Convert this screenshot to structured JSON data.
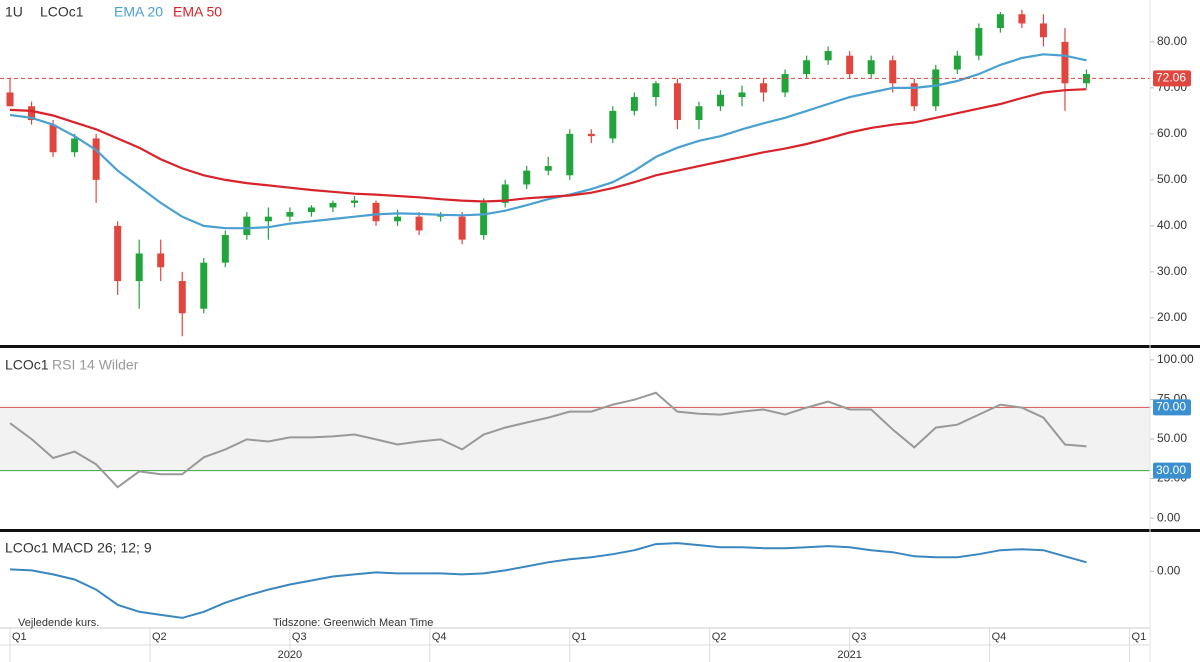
{
  "chart_data": [
    {
      "type": "candlestick",
      "interval": "1U",
      "x": [
        0,
        2,
        4,
        6,
        8,
        10,
        12,
        14,
        16,
        18,
        20,
        22,
        24,
        26,
        28,
        30,
        32,
        34,
        36,
        38,
        40,
        42,
        44,
        46,
        48,
        50,
        52,
        54,
        56,
        58,
        60,
        62,
        64,
        66,
        68,
        70,
        72,
        74,
        76,
        78,
        80,
        82,
        84,
        86,
        88,
        90,
        92,
        94,
        96,
        98,
        100
      ],
      "xlim": [
        -0.93,
        105.9
      ],
      "ylim": [
        14.1,
        89.1
      ],
      "yticks": [
        {
          "value": 20,
          "label": "20.00"
        },
        {
          "value": 30,
          "label": "30.00"
        },
        {
          "value": 40,
          "label": "40.00"
        },
        {
          "value": 50,
          "label": "50.00"
        },
        {
          "value": 60,
          "label": "60.00"
        },
        {
          "value": 70,
          "label": "70.00"
        },
        {
          "value": 80,
          "label": "80.00"
        }
      ],
      "up_color": "#22a33b",
      "down_color": "#e0463d",
      "series": [
        {
          "name": "LCOc1",
          "open": [
            69,
            66,
            62,
            56,
            59,
            40,
            28,
            34,
            28,
            22,
            32,
            38,
            41,
            42,
            43,
            44,
            45,
            45,
            41,
            42,
            42,
            42,
            38,
            45,
            49,
            52,
            51,
            60,
            59,
            65,
            68,
            71,
            63,
            66,
            68,
            71,
            69,
            73,
            76,
            77,
            73,
            76,
            71,
            66,
            74,
            77,
            83,
            86,
            84,
            80,
            71
          ],
          "high": [
            72,
            67,
            63,
            60,
            60,
            41,
            37,
            37,
            30,
            33,
            39,
            43,
            44,
            44,
            44.5,
            45.5,
            46.5,
            45.5,
            43.5,
            43,
            43,
            43,
            46,
            50,
            53,
            55,
            61,
            61,
            66,
            69,
            71.5,
            72,
            67,
            69.5,
            70.5,
            72,
            74,
            77,
            79,
            78,
            77,
            77,
            72,
            75,
            78,
            84,
            86.5,
            87,
            86,
            83,
            74
          ],
          "low": [
            66,
            62,
            55,
            55,
            45,
            25,
            22,
            28,
            16,
            21,
            31,
            37,
            37,
            41,
            42,
            43,
            44,
            40,
            40,
            38,
            41,
            36,
            37,
            44,
            48,
            51,
            50,
            58,
            58,
            64,
            66,
            61,
            61,
            65,
            66,
            67,
            68,
            72,
            75,
            72,
            72,
            69,
            65,
            65,
            73,
            76,
            82,
            83,
            79,
            65,
            70
          ],
          "close": [
            66,
            63,
            56,
            59,
            50,
            28,
            34,
            31,
            21,
            32,
            38,
            42,
            42,
            43,
            44,
            45,
            45.5,
            41,
            42,
            39,
            42.5,
            37,
            45,
            49,
            52,
            53,
            60,
            59.5,
            65,
            68,
            71,
            63,
            66,
            68.5,
            69,
            69,
            73,
            76,
            78,
            73,
            76,
            71,
            66,
            74,
            77,
            83,
            86,
            84,
            81,
            71,
            73
          ]
        },
        {
          "name": "EMA 20",
          "color": "#4aa0d0",
          "values": [
            64.1,
            63.5,
            62,
            59.5,
            56.5,
            52,
            48.5,
            45,
            42,
            40,
            39.5,
            39.5,
            39.7,
            40.5,
            41,
            41.5,
            42,
            42.5,
            42.7,
            42.6,
            42.4,
            42.3,
            42.5,
            43.3,
            44.5,
            45.8,
            46.8,
            48,
            49.5,
            52,
            55,
            57,
            58.5,
            59.5,
            61,
            62.3,
            63.5,
            65,
            66.5,
            68,
            69,
            70,
            70,
            70.5,
            71.5,
            73,
            75,
            76.5,
            77.3,
            77,
            76
          ]
        },
        {
          "name": "EMA 50",
          "color": "#d8232a",
          "values": [
            65.2,
            65,
            64,
            62.5,
            61,
            59,
            57,
            54.5,
            52.5,
            51,
            50,
            49.3,
            48.8,
            48.3,
            47.8,
            47.4,
            47,
            46.8,
            46.5,
            46.2,
            45.8,
            45.5,
            45.3,
            45.5,
            46,
            46.3,
            46.6,
            47.2,
            48.2,
            49.5,
            51,
            52,
            53,
            54,
            55,
            56,
            56.8,
            57.8,
            59,
            60.3,
            61.3,
            62,
            62.5,
            63.5,
            64.5,
            65.5,
            66.5,
            67.8,
            69,
            69.5,
            69.7
          ]
        }
      ],
      "ref_line": {
        "value": 72.06,
        "color": "#e0463d"
      }
    },
    {
      "type": "line",
      "symbol": "LCOc1",
      "indicator": "RSI 14 Wilder",
      "x": [
        0,
        2,
        4,
        6,
        8,
        10,
        12,
        14,
        16,
        18,
        20,
        22,
        24,
        26,
        28,
        30,
        32,
        34,
        36,
        38,
        40,
        42,
        44,
        46,
        48,
        50,
        52,
        54,
        56,
        58,
        60,
        62,
        64,
        66,
        68,
        70,
        72,
        74,
        76,
        78,
        80,
        82,
        84,
        86,
        88,
        90,
        92,
        94,
        96,
        98,
        100
      ],
      "xlim": [
        -0.93,
        105.9
      ],
      "ylim": [
        -6.9,
        107.5
      ],
      "yticks": [
        {
          "value": 0,
          "label": "0.00"
        },
        {
          "value": 25,
          "label": "25.00"
        },
        {
          "value": 50,
          "label": "50.00"
        },
        {
          "value": 75,
          "label": "75.00"
        },
        {
          "value": 100,
          "label": "100.00"
        }
      ],
      "color": "#999999",
      "values": [
        60,
        50,
        38,
        42,
        34,
        19.5,
        29.5,
        27.7,
        27.7,
        38.4,
        43.4,
        49.7,
        48.4,
        51,
        51,
        51.6,
        52.8,
        49.7,
        46.5,
        48.4,
        49.7,
        43.4,
        52.8,
        57.2,
        60.4,
        63.5,
        67.3,
        67.3,
        71.7,
        74.8,
        79.2,
        67.3,
        66,
        65.4,
        67.3,
        68.6,
        65.4,
        69.8,
        73.6,
        68.6,
        68.6,
        56,
        44.7,
        57.2,
        59,
        65.4,
        71.7,
        69.8,
        63.5,
        46.5,
        45.3
      ],
      "levels": [
        {
          "value": 70,
          "label": "70.00",
          "color": "#d9534f"
        },
        {
          "value": 30,
          "label": "30.00",
          "color": "#3aa63a"
        }
      ],
      "band_color": "#f2f2f2"
    },
    {
      "type": "line",
      "symbol": "LCOc1",
      "indicator": "MACD 26; 12; 9",
      "x": [
        0,
        2,
        4,
        6,
        8,
        10,
        12,
        14,
        16,
        18,
        20,
        22,
        24,
        26,
        28,
        30,
        32,
        34,
        36,
        38,
        40,
        42,
        44,
        46,
        48,
        50,
        52,
        54,
        56,
        58,
        60,
        62,
        64,
        66,
        68,
        70,
        72,
        74,
        76,
        78,
        80,
        82,
        84,
        86,
        88,
        90,
        92,
        94,
        96,
        98,
        100
      ],
      "xlim": [
        -0.93,
        105.9
      ],
      "ylim": [
        -5.6,
        3.9
      ],
      "yticks": [
        {
          "value": 0,
          "label": "0.00"
        }
      ],
      "color": "#3a87c0",
      "values": [
        0.2,
        0.1,
        -0.3,
        -0.8,
        -1.8,
        -3.3,
        -4,
        -4.3,
        -4.6,
        -4,
        -3.1,
        -2.4,
        -1.8,
        -1.3,
        -0.9,
        -0.5,
        -0.3,
        -0.1,
        -0.2,
        -0.2,
        -0.2,
        -0.3,
        -0.2,
        0.1,
        0.5,
        0.9,
        1.2,
        1.4,
        1.7,
        2.1,
        2.7,
        2.8,
        2.6,
        2.4,
        2.4,
        2.3,
        2.3,
        2.4,
        2.5,
        2.4,
        2.1,
        1.9,
        1.5,
        1.4,
        1.4,
        1.7,
        2.1,
        2.2,
        2.1,
        1.5,
        0.9
      ],
      "xticks": [
        {
          "value": 0,
          "label": "Q1"
        },
        {
          "value": 13,
          "label": "Q2"
        },
        {
          "value": 26,
          "label": "Q3"
        },
        {
          "value": 39,
          "label": "Q4"
        },
        {
          "value": 52,
          "label": "Q1"
        },
        {
          "value": 65,
          "label": "Q2"
        },
        {
          "value": 78,
          "label": "Q3"
        },
        {
          "value": 91,
          "label": "Q4"
        },
        {
          "value": 104,
          "label": "Q1"
        }
      ],
      "year_ticks": [
        {
          "value": 26,
          "label": "2020"
        },
        {
          "value": 78,
          "label": "2021"
        }
      ]
    }
  ],
  "footer": {
    "note": "Vejledende kurs.",
    "timezone": "Tidszone: Greenwich Mean Time"
  }
}
